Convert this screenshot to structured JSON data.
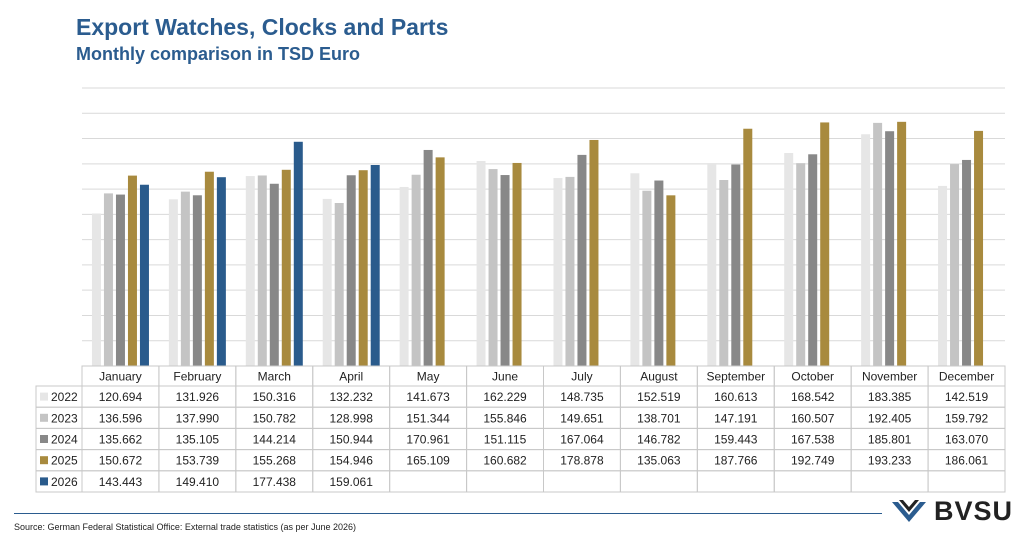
{
  "title": "Export Watches, Clocks and Parts",
  "subtitle": "Monthly comparison in TSD Euro",
  "source": "Source: German Federal Statistical Office: External trade statistics (as per June 2026)",
  "logo_text": "BVSU",
  "chart_data": {
    "type": "bar",
    "categories": [
      "January",
      "February",
      "March",
      "April",
      "May",
      "June",
      "July",
      "August",
      "September",
      "October",
      "November",
      "December"
    ],
    "ylim": [
      0,
      220
    ],
    "grid": true,
    "legend": "table-below",
    "series": [
      {
        "name": "2022",
        "color": "#e6e6e6",
        "values": [
          120.694,
          131.926,
          150.316,
          132.232,
          141.673,
          162.229,
          148.735,
          152.519,
          160.613,
          168.542,
          183.385,
          142.519
        ],
        "labels": [
          "120.694",
          "131.926",
          "150.316",
          "132.232",
          "141.673",
          "162.229",
          "148.735",
          "152.519",
          "160.613",
          "168.542",
          "183.385",
          "142.519"
        ]
      },
      {
        "name": "2023",
        "color": "#c4c4c4",
        "values": [
          136.596,
          137.99,
          150.782,
          128.998,
          151.344,
          155.846,
          149.651,
          138.701,
          147.191,
          160.507,
          192.405,
          159.792
        ],
        "labels": [
          "136.596",
          "137.990",
          "150.782",
          "128.998",
          "151.344",
          "155.846",
          "149.651",
          "138.701",
          "147.191",
          "160.507",
          "192.405",
          "159.792"
        ]
      },
      {
        "name": "2024",
        "color": "#888888",
        "values": [
          135.662,
          135.105,
          144.214,
          150.944,
          170.961,
          151.115,
          167.064,
          146.782,
          159.443,
          167.538,
          185.801,
          163.07
        ],
        "labels": [
          "135.662",
          "135.105",
          "144.214",
          "150.944",
          "170.961",
          "151.115",
          "167.064",
          "146.782",
          "159.443",
          "167.538",
          "185.801",
          "163.070"
        ]
      },
      {
        "name": "2025",
        "color": "#a88a3e",
        "values": [
          150.672,
          153.739,
          155.268,
          154.946,
          165.109,
          160.682,
          178.878,
          135.063,
          187.766,
          192.749,
          193.233,
          186.061
        ],
        "labels": [
          "150.672",
          "153.739",
          "155.268",
          "154.946",
          "165.109",
          "160.682",
          "178.878",
          "135.063",
          "187.766",
          "192.749",
          "193.233",
          "186.061"
        ]
      },
      {
        "name": "2026",
        "color": "#2a5b8c",
        "values": [
          143.443,
          149.41,
          177.438,
          159.061,
          null,
          null,
          null,
          null,
          null,
          null,
          null,
          null
        ],
        "labels": [
          "143.443",
          "149.410",
          "177.438",
          "159.061",
          "",
          "",
          "",
          "",
          "",
          "",
          "",
          ""
        ]
      }
    ]
  }
}
